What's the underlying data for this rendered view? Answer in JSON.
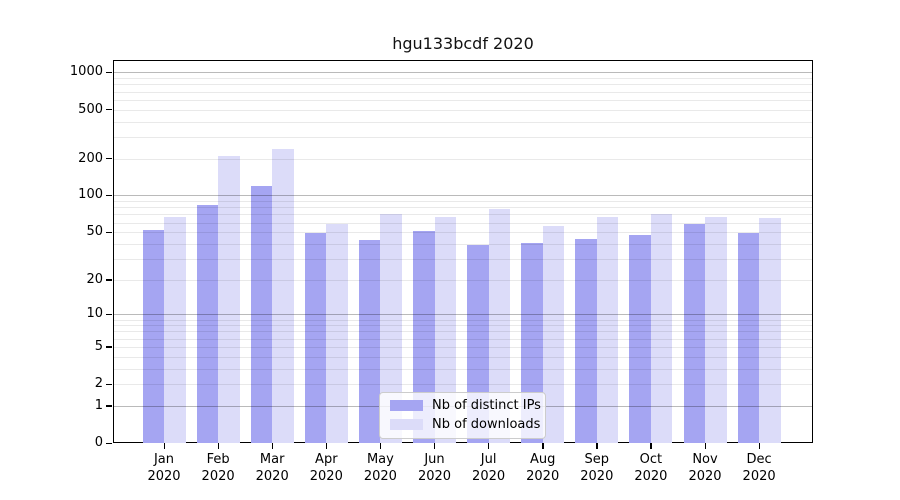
{
  "title": "hgu133bcdf 2020",
  "colors": {
    "distinct_ips_bar": "#a5a5f2",
    "downloads_bar": "#dcdcf9",
    "major_grid": "#bababa",
    "minor_grid": "#ebebeb",
    "spine": "#000000"
  },
  "legend": {
    "items": [
      {
        "label": "Nb of distinct IPs",
        "color": "#a5a5f2"
      },
      {
        "label": "Nb of downloads",
        "color": "#dcdcf9"
      }
    ]
  },
  "axes": {
    "y_tick_labels": [
      "1000",
      "500",
      "200",
      "100",
      "50",
      "20",
      "10",
      "5",
      "2",
      "1",
      "0"
    ],
    "x_month_labels": [
      "Jan",
      "Feb",
      "Mar",
      "Apr",
      "May",
      "Jun",
      "Jul",
      "Aug",
      "Sep",
      "Oct",
      "Nov",
      "Dec"
    ],
    "x_year_label": "2020"
  },
  "chart_data": {
    "type": "bar",
    "title": "hgu133bcdf 2020",
    "categories": [
      "Jan 2020",
      "Feb 2020",
      "Mar 2020",
      "Apr 2020",
      "May 2020",
      "Jun 2020",
      "Jul 2020",
      "Aug 2020",
      "Sep 2020",
      "Oct 2020",
      "Nov 2020",
      "Dec 2020"
    ],
    "series": [
      {
        "name": "Nb of distinct IPs",
        "color": "#a5a5f2",
        "values": [
          52,
          84,
          120,
          49,
          43,
          51,
          39,
          41,
          44,
          47,
          58,
          49
        ]
      },
      {
        "name": "Nb of downloads",
        "color": "#dcdcf9",
        "values": [
          66,
          210,
          240,
          58,
          70,
          67,
          78,
          56,
          66,
          70,
          66,
          65
        ]
      }
    ],
    "yscale": "log1p",
    "y_ticks": [
      0,
      1,
      2,
      5,
      10,
      20,
      50,
      100,
      200,
      500,
      1000
    ],
    "ylim": [
      0,
      1260
    ],
    "grid": true,
    "grid_minor": true,
    "legend_position": "lower center",
    "xlabel": "",
    "ylabel": ""
  }
}
